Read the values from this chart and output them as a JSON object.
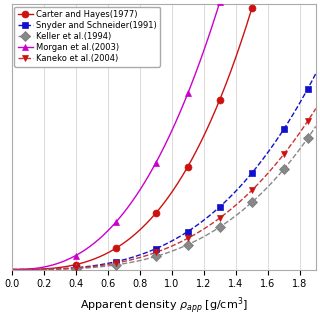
{
  "xlabel": "Apparent density $\\rho_{app}$ [g/cm$^3$]",
  "xlim": [
    0,
    1.9
  ],
  "ylim": [
    0,
    13
  ],
  "xticks": [
    0,
    0.2,
    0.4,
    0.6,
    0.8,
    1.0,
    1.2,
    1.4,
    1.6,
    1.8
  ],
  "series": [
    {
      "label": "Carter and Hayes(1977)",
      "color": "#cc1111",
      "linestyle": "-",
      "marker": "o",
      "markercolor": "#cc1111",
      "markerfacecolor": "#cc1111",
      "a": 3.79,
      "n": 3.0
    },
    {
      "label": "Snyder and Schneider(1991)",
      "color": "#1111cc",
      "linestyle": "--",
      "marker": "s",
      "markercolor": "#1111cc",
      "markerfacecolor": "#1111cc",
      "a": 1.4,
      "n": 3.0
    },
    {
      "label": "Keller et al.(1994)",
      "color": "#888888",
      "linestyle": "--",
      "marker": "D",
      "markercolor": "#777777",
      "markerfacecolor": "#888888",
      "a": 0.9,
      "n": 3.2
    },
    {
      "label": "Morgan et al.(2003)",
      "color": "#cc00cc",
      "linestyle": "-",
      "marker": "^",
      "markercolor": "#cc00cc",
      "markerfacecolor": "#cc00cc",
      "a": 6.8,
      "n": 2.5
    },
    {
      "label": "Kaneko et al.(2004)",
      "color": "#cc3333",
      "linestyle": "--",
      "marker": "v",
      "markercolor": "#cc1111",
      "markerfacecolor": "#cc1111",
      "a": 1.15,
      "n": 3.0
    }
  ],
  "marker_positions": [
    0.4,
    0.65,
    0.9,
    1.1,
    1.3,
    1.5,
    1.7,
    1.85
  ],
  "background_color": "#ffffff",
  "legend_fontsize": 6.0,
  "tick_fontsize": 7,
  "label_fontsize": 8
}
